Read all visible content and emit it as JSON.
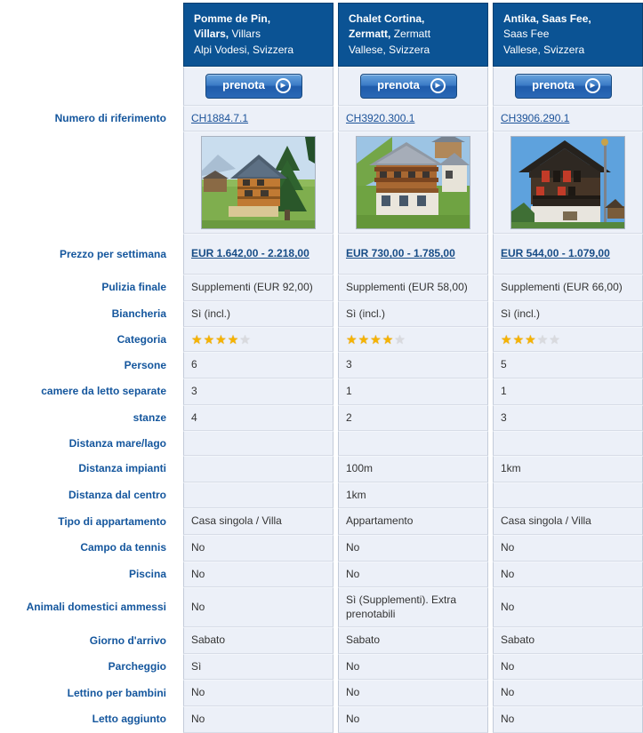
{
  "booking_button_label": "prenota",
  "reference_row_label": "Numero di riferimento",
  "columns": [
    {
      "header": {
        "bold1": "Pomme de Pin,",
        "bold2": "Villars,",
        "normal2": "Villars",
        "line3": "Alpi Vodesi, Svizzera"
      },
      "reference": "CH1884.7.1",
      "photo": "chalet-in-meadow-with-pine-trees"
    },
    {
      "header": {
        "bold1": "Chalet Cortina,",
        "bold2": "Zermatt,",
        "normal2": "Zermatt",
        "line3": "Vallese, Svizzera"
      },
      "reference": "CH3920.300.1",
      "photo": "large-chalet-with-balconies-on-hillside"
    },
    {
      "header": {
        "bold1": "Antika, Saas Fee,",
        "bold2": "",
        "normal2": "Saas Fee",
        "line3": "Vallese, Svizzera"
      },
      "reference": "CH3906.290.1",
      "photo": "dark-chalet-with-red-shutters"
    }
  ],
  "rows": [
    {
      "label": "Prezzo per settimana",
      "type": "price_link",
      "values": [
        "EUR 1.642,00 - 2.218,00",
        "EUR 730,00 - 1.785,00",
        "EUR 544,00 - 1.079,00"
      ]
    },
    {
      "label": "Pulizia finale",
      "type": "text",
      "values": [
        "Supplementi (EUR 92,00)",
        "Supplementi (EUR 58,00)",
        "Supplementi (EUR 66,00)"
      ]
    },
    {
      "label": "Biancheria",
      "type": "text",
      "values": [
        "Sì (incl.)",
        "Sì (incl.)",
        "Sì (incl.)"
      ]
    },
    {
      "label": "Categoria",
      "type": "stars",
      "max": 5,
      "values": [
        4,
        4,
        3
      ]
    },
    {
      "label": "Persone",
      "type": "text",
      "values": [
        "6",
        "3",
        "5"
      ]
    },
    {
      "label": "camere da letto separate",
      "type": "text",
      "values": [
        "3",
        "1",
        "1"
      ]
    },
    {
      "label": "stanze",
      "type": "text",
      "values": [
        "4",
        "2",
        "3"
      ]
    },
    {
      "label": "Distanza mare/lago",
      "type": "text",
      "values": [
        "",
        "",
        ""
      ]
    },
    {
      "label": "Distanza impianti",
      "type": "text",
      "values": [
        "",
        "100m",
        "1km"
      ]
    },
    {
      "label": "Distanza dal centro",
      "type": "text",
      "values": [
        "",
        "1km",
        ""
      ]
    },
    {
      "label": "Tipo di appartamento",
      "type": "text",
      "values": [
        "Casa singola / Villa",
        "Appartamento",
        "Casa singola / Villa"
      ]
    },
    {
      "label": "Campo da tennis",
      "type": "text",
      "values": [
        "No",
        "No",
        "No"
      ]
    },
    {
      "label": "Piscina",
      "type": "text",
      "values": [
        "No",
        "No",
        "No"
      ]
    },
    {
      "label": "Animali domestici ammessi",
      "type": "text",
      "values": [
        "No",
        "Sì (Supplementi). Extra prenotabili",
        "No"
      ]
    },
    {
      "label": "Giorno d'arrivo",
      "type": "text",
      "values": [
        "Sabato",
        "Sabato",
        "Sabato"
      ]
    },
    {
      "label": "Parcheggio",
      "type": "text",
      "values": [
        "Sì",
        "No",
        "No"
      ]
    },
    {
      "label": "Lettino per bambini",
      "type": "text",
      "values": [
        "No",
        "No",
        "No"
      ]
    },
    {
      "label": "Letto aggiunto",
      "type": "text",
      "values": [
        "No",
        "No",
        "No"
      ]
    }
  ],
  "colors": {
    "header_bg": "#0b5394",
    "cell_bg": "#ecf0f8",
    "label_blue": "#14569d",
    "link_blue": "#1b5299",
    "star_gold": "#f5b301",
    "star_empty": "#d9dade"
  }
}
